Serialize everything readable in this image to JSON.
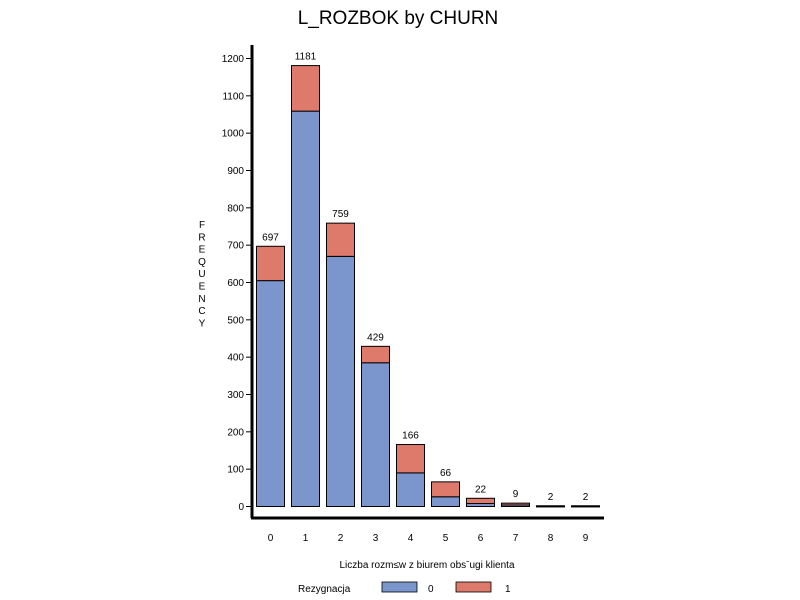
{
  "chart_data": {
    "type": "bar",
    "stacked": true,
    "title": "L_ROZBOK by CHURN",
    "xlabel": "Liczba rozm≤w z biurem obsˉugi klienta",
    "ylabel": "FREQUENCY",
    "categories": [
      "0",
      "1",
      "2",
      "3",
      "4",
      "5",
      "6",
      "7",
      "8",
      "9"
    ],
    "series": [
      {
        "name": "0",
        "color": "#7b96cd",
        "values": [
          605,
          1059,
          670,
          385,
          90,
          26,
          8,
          4,
          1,
          1
        ]
      },
      {
        "name": "1",
        "color": "#dd7a6c",
        "values": [
          92,
          122,
          89,
          44,
          76,
          40,
          14,
          5,
          1,
          1
        ]
      }
    ],
    "totals": [
      "697",
      "1181",
      "759",
      "429",
      "166",
      "66",
      "22",
      "9",
      "2",
      "2"
    ],
    "yticks": [
      "0",
      "100",
      "200",
      "300",
      "400",
      "500",
      "600",
      "700",
      "800",
      "900",
      "1000",
      "1100",
      "1200"
    ],
    "ylim": [
      0,
      1200
    ],
    "grid": false,
    "legend": {
      "title": "Rezygnacja",
      "placement": "bottom"
    }
  }
}
